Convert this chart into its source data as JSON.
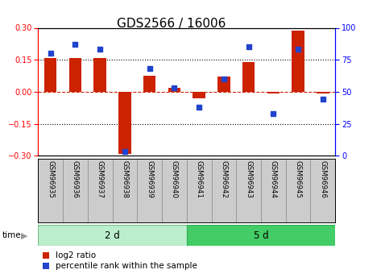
{
  "title": "GDS2566 / 16006",
  "samples": [
    "GSM96935",
    "GSM96936",
    "GSM96937",
    "GSM96938",
    "GSM96939",
    "GSM96940",
    "GSM96941",
    "GSM96942",
    "GSM96943",
    "GSM96944",
    "GSM96945",
    "GSM96946"
  ],
  "log2_ratio": [
    0.16,
    0.16,
    0.16,
    -0.29,
    0.075,
    0.02,
    -0.03,
    0.07,
    0.14,
    -0.01,
    0.285,
    -0.01
  ],
  "percentile_rank": [
    80,
    87,
    83,
    3,
    68,
    53,
    38,
    60,
    85,
    33,
    83,
    44
  ],
  "group1_label": "2 d",
  "group2_label": "5 d",
  "group1_count": 6,
  "group2_count": 6,
  "ylim_left": [
    -0.3,
    0.3
  ],
  "ylim_right": [
    0,
    100
  ],
  "yticks_left": [
    -0.3,
    -0.15,
    0.0,
    0.15,
    0.3
  ],
  "yticks_right": [
    0,
    25,
    50,
    75,
    100
  ],
  "hlines_dotted": [
    0.15,
    -0.15
  ],
  "hline_dashed": 0.0,
  "bar_color": "#cc2200",
  "dot_color": "#2244cc",
  "group1_color": "#bbeecc",
  "group2_color": "#44cc66",
  "sample_box_color": "#cccccc",
  "sample_box_edge": "#999999",
  "background_color": "#ffffff",
  "title_fontsize": 11,
  "tick_fontsize": 7,
  "label_fontsize": 8,
  "legend_fontsize": 7.5
}
